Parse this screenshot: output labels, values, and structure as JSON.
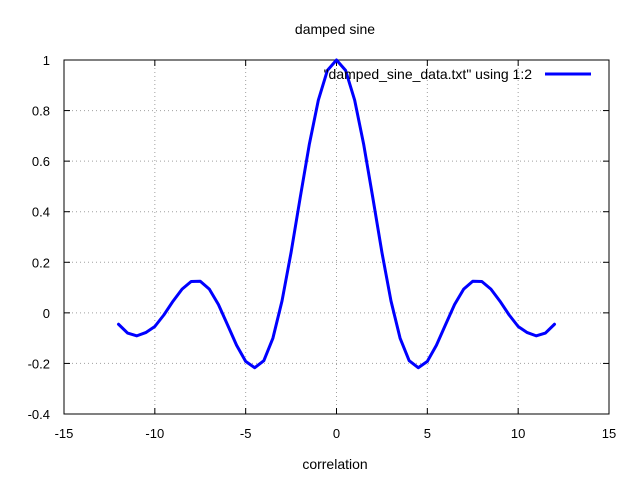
{
  "chart_data": {
    "type": "line",
    "title": "damped sine",
    "xlabel": "correlation",
    "ylabel": "",
    "xlim": [
      -15,
      15
    ],
    "ylim": [
      -0.4,
      1
    ],
    "xticks": [
      -15,
      -10,
      -5,
      0,
      5,
      10,
      15
    ],
    "yticks": [
      -0.4,
      -0.2,
      0,
      0.2,
      0.4,
      0.6,
      0.8,
      1
    ],
    "xtick_labels": [
      "-15",
      "-10",
      "-5",
      "0",
      "5",
      "10",
      "15"
    ],
    "ytick_labels": [
      "-0.4",
      "-0.2",
      "0",
      "0.2",
      "0.4",
      "0.6",
      "0.8",
      "1"
    ],
    "grid": true,
    "legend_position": "top-right",
    "series": [
      {
        "name": "\"damped_sine_data.txt\" using 1:2",
        "color": "#0000ff",
        "x": [
          -12,
          -11.5,
          -11,
          -10.5,
          -10,
          -9.5,
          -9,
          -8.5,
          -8,
          -7.5,
          -7,
          -6.5,
          -6,
          -5.5,
          -5,
          -4.5,
          -4,
          -3.5,
          -3,
          -2.5,
          -2,
          -1.5,
          -1,
          -0.5,
          0,
          0.5,
          1,
          1.5,
          2,
          2.5,
          3,
          3.5,
          4,
          4.5,
          5,
          5.5,
          6,
          6.5,
          7,
          7.5,
          8,
          8.5,
          9,
          9.5,
          10,
          10.5,
          11,
          11.5,
          12
        ],
        "y": [
          -0.045,
          -0.08,
          -0.091,
          -0.078,
          -0.054,
          -0.008,
          0.046,
          0.094,
          0.124,
          0.125,
          0.094,
          0.033,
          -0.047,
          -0.128,
          -0.192,
          -0.217,
          -0.189,
          -0.1,
          0.047,
          0.239,
          0.455,
          0.665,
          0.841,
          0.959,
          1.0,
          0.959,
          0.841,
          0.665,
          0.455,
          0.239,
          0.047,
          -0.1,
          -0.189,
          -0.217,
          -0.192,
          -0.128,
          -0.047,
          0.033,
          0.094,
          0.125,
          0.124,
          0.094,
          0.046,
          -0.008,
          -0.054,
          -0.078,
          -0.091,
          -0.08,
          -0.045
        ]
      }
    ]
  }
}
